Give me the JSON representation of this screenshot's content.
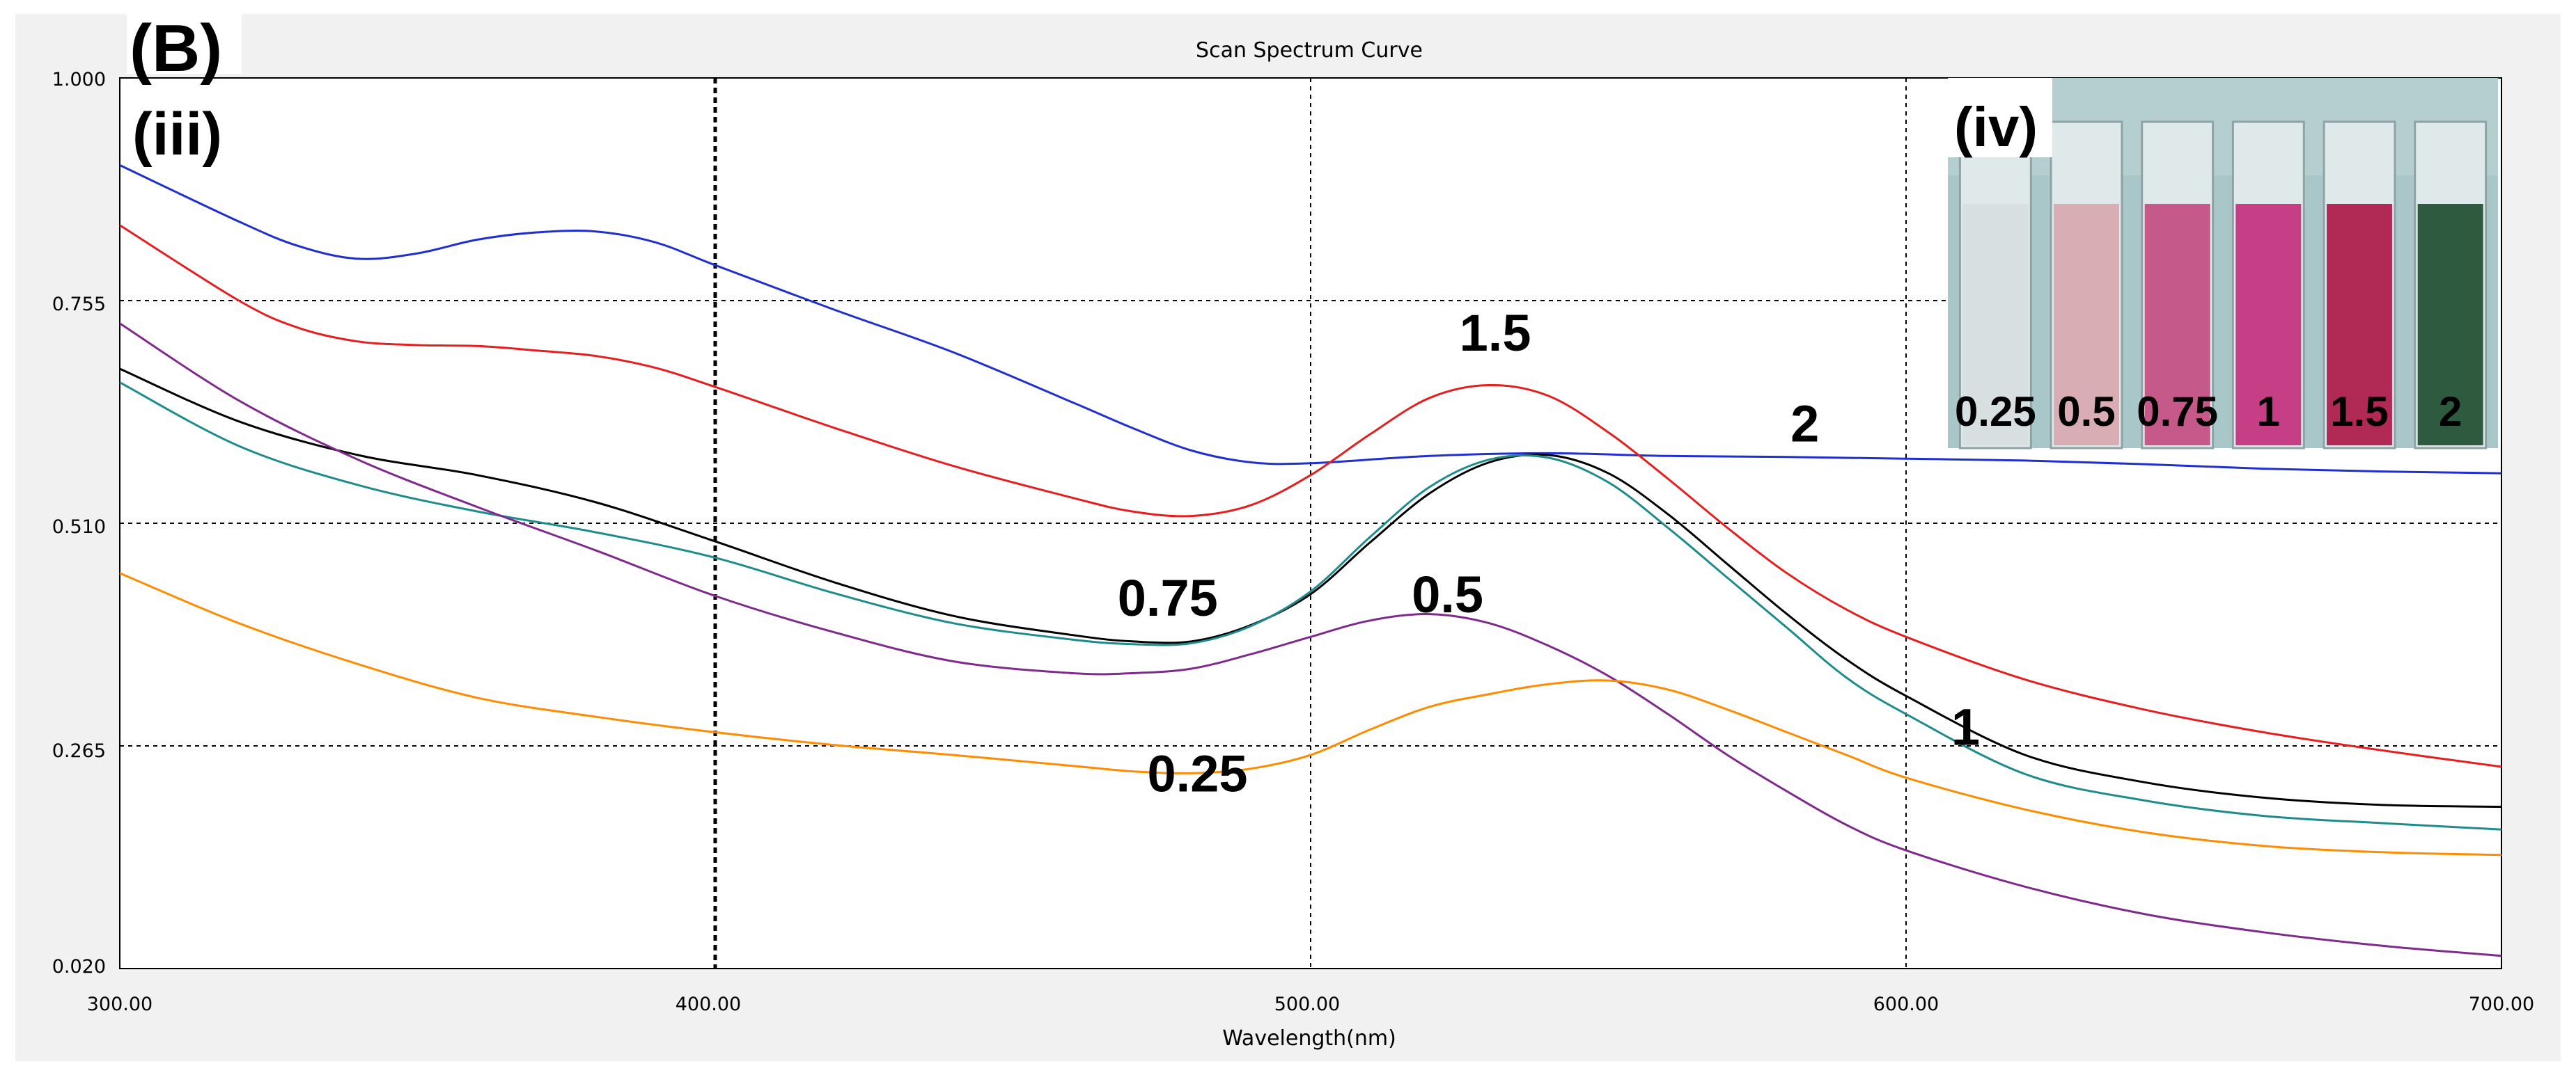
{
  "chart_data": {
    "type": "line",
    "title": "Scan Spectrum Curve",
    "xlabel": "Wavelength(nm)",
    "ylabel": "",
    "xlim": [
      300,
      700
    ],
    "ylim": [
      0.02,
      1.0
    ],
    "x_ticks": [
      "300.00",
      "400.00",
      "500.00",
      "600.00",
      "700.00"
    ],
    "y_ticks": [
      "0.020",
      "0.265",
      "0.510",
      "0.755",
      "1.000"
    ],
    "grid": true,
    "series": [
      {
        "name": "2",
        "color": "#1f2fd0",
        "points": [
          [
            300,
            0.904
          ],
          [
            320,
            0.842
          ],
          [
            330,
            0.815
          ],
          [
            340,
            0.801
          ],
          [
            350,
            0.807
          ],
          [
            360,
            0.822
          ],
          [
            370,
            0.83
          ],
          [
            380,
            0.831
          ],
          [
            390,
            0.819
          ],
          [
            400,
            0.794
          ],
          [
            420,
            0.745
          ],
          [
            440,
            0.698
          ],
          [
            460,
            0.643
          ],
          [
            470,
            0.615
          ],
          [
            480,
            0.59
          ],
          [
            490,
            0.577
          ],
          [
            500,
            0.576
          ],
          [
            520,
            0.584
          ],
          [
            540,
            0.587
          ],
          [
            560,
            0.584
          ],
          [
            580,
            0.583
          ],
          [
            600,
            0.581
          ],
          [
            620,
            0.579
          ],
          [
            640,
            0.575
          ],
          [
            660,
            0.57
          ],
          [
            680,
            0.567
          ],
          [
            700,
            0.565
          ]
        ]
      },
      {
        "name": "1.5",
        "color": "#e61e1e",
        "points": [
          [
            300,
            0.838
          ],
          [
            320,
            0.755
          ],
          [
            330,
            0.725
          ],
          [
            340,
            0.71
          ],
          [
            350,
            0.706
          ],
          [
            360,
            0.705
          ],
          [
            370,
            0.7
          ],
          [
            380,
            0.694
          ],
          [
            390,
            0.681
          ],
          [
            400,
            0.66
          ],
          [
            420,
            0.615
          ],
          [
            440,
            0.573
          ],
          [
            460,
            0.538
          ],
          [
            470,
            0.523
          ],
          [
            480,
            0.518
          ],
          [
            490,
            0.53
          ],
          [
            500,
            0.563
          ],
          [
            510,
            0.608
          ],
          [
            520,
            0.648
          ],
          [
            530,
            0.662
          ],
          [
            540,
            0.65
          ],
          [
            550,
            0.61
          ],
          [
            560,
            0.559
          ],
          [
            570,
            0.505
          ],
          [
            580,
            0.455
          ],
          [
            590,
            0.415
          ],
          [
            600,
            0.385
          ],
          [
            620,
            0.338
          ],
          [
            640,
            0.305
          ],
          [
            660,
            0.28
          ],
          [
            680,
            0.26
          ],
          [
            700,
            0.242
          ]
        ]
      },
      {
        "name": "1",
        "color": "#000000",
        "points": [
          [
            300,
            0.68
          ],
          [
            320,
            0.622
          ],
          [
            340,
            0.585
          ],
          [
            360,
            0.563
          ],
          [
            380,
            0.533
          ],
          [
            400,
            0.49
          ],
          [
            420,
            0.445
          ],
          [
            440,
            0.408
          ],
          [
            460,
            0.387
          ],
          [
            470,
            0.38
          ],
          [
            480,
            0.38
          ],
          [
            490,
            0.398
          ],
          [
            500,
            0.432
          ],
          [
            510,
            0.489
          ],
          [
            520,
            0.543
          ],
          [
            530,
            0.577
          ],
          [
            540,
            0.585
          ],
          [
            550,
            0.565
          ],
          [
            560,
            0.52
          ],
          [
            570,
            0.465
          ],
          [
            580,
            0.41
          ],
          [
            590,
            0.36
          ],
          [
            600,
            0.32
          ],
          [
            620,
            0.255
          ],
          [
            640,
            0.225
          ],
          [
            660,
            0.208
          ],
          [
            680,
            0.2
          ],
          [
            700,
            0.198
          ]
        ]
      },
      {
        "name": "0.75",
        "color": "#1e8c8c",
        "points": [
          [
            300,
            0.665
          ],
          [
            320,
            0.595
          ],
          [
            340,
            0.552
          ],
          [
            360,
            0.523
          ],
          [
            380,
            0.5
          ],
          [
            400,
            0.472
          ],
          [
            420,
            0.433
          ],
          [
            440,
            0.4
          ],
          [
            460,
            0.382
          ],
          [
            470,
            0.377
          ],
          [
            480,
            0.378
          ],
          [
            490,
            0.397
          ],
          [
            500,
            0.435
          ],
          [
            510,
            0.495
          ],
          [
            520,
            0.55
          ],
          [
            530,
            0.58
          ],
          [
            540,
            0.582
          ],
          [
            550,
            0.555
          ],
          [
            560,
            0.505
          ],
          [
            570,
            0.45
          ],
          [
            580,
            0.395
          ],
          [
            590,
            0.34
          ],
          [
            600,
            0.3
          ],
          [
            620,
            0.234
          ],
          [
            640,
            0.205
          ],
          [
            660,
            0.188
          ],
          [
            680,
            0.18
          ],
          [
            700,
            0.173
          ]
        ]
      },
      {
        "name": "0.5",
        "color": "#7f2a8c",
        "points": [
          [
            300,
            0.73
          ],
          [
            320,
            0.645
          ],
          [
            340,
            0.58
          ],
          [
            360,
            0.528
          ],
          [
            380,
            0.48
          ],
          [
            400,
            0.43
          ],
          [
            420,
            0.39
          ],
          [
            440,
            0.358
          ],
          [
            460,
            0.345
          ],
          [
            470,
            0.345
          ],
          [
            480,
            0.35
          ],
          [
            490,
            0.366
          ],
          [
            500,
            0.385
          ],
          [
            510,
            0.403
          ],
          [
            520,
            0.41
          ],
          [
            530,
            0.4
          ],
          [
            540,
            0.375
          ],
          [
            550,
            0.342
          ],
          [
            560,
            0.3
          ],
          [
            570,
            0.255
          ],
          [
            580,
            0.215
          ],
          [
            590,
            0.178
          ],
          [
            600,
            0.15
          ],
          [
            620,
            0.11
          ],
          [
            640,
            0.08
          ],
          [
            660,
            0.06
          ],
          [
            680,
            0.045
          ],
          [
            700,
            0.034
          ]
        ]
      },
      {
        "name": "0.25",
        "color": "#ff8c00",
        "points": [
          [
            300,
            0.455
          ],
          [
            320,
            0.4
          ],
          [
            340,
            0.355
          ],
          [
            360,
            0.318
          ],
          [
            380,
            0.297
          ],
          [
            400,
            0.28
          ],
          [
            420,
            0.266
          ],
          [
            440,
            0.255
          ],
          [
            460,
            0.243
          ],
          [
            470,
            0.237
          ],
          [
            480,
            0.235
          ],
          [
            490,
            0.24
          ],
          [
            500,
            0.255
          ],
          [
            510,
            0.283
          ],
          [
            520,
            0.308
          ],
          [
            530,
            0.322
          ],
          [
            540,
            0.333
          ],
          [
            550,
            0.337
          ],
          [
            560,
            0.327
          ],
          [
            570,
            0.305
          ],
          [
            580,
            0.28
          ],
          [
            590,
            0.255
          ],
          [
            600,
            0.23
          ],
          [
            620,
            0.195
          ],
          [
            640,
            0.17
          ],
          [
            660,
            0.155
          ],
          [
            680,
            0.148
          ],
          [
            700,
            0.145
          ]
        ]
      }
    ],
    "annotations": [
      {
        "text": "1.5",
        "x": 531,
        "y": 0.7
      },
      {
        "text": "2",
        "x": 583,
        "y": 0.6
      },
      {
        "text": "0.75",
        "x": 476,
        "y": 0.408
      },
      {
        "text": "0.5",
        "x": 523,
        "y": 0.412
      },
      {
        "text": "1",
        "x": 610,
        "y": 0.266
      },
      {
        "text": "0.25",
        "x": 481,
        "y": 0.215
      }
    ]
  },
  "panel": {
    "label_b": "(B)",
    "label_iii": "(iii)"
  },
  "inset": {
    "label": "(iv)",
    "background_color": "#a9c6c9",
    "vials": [
      {
        "label": "0.25",
        "color": "#d8dfe0"
      },
      {
        "label": "0.5",
        "color": "#d8aeb4"
      },
      {
        "label": "0.75",
        "color": "#c55a8a"
      },
      {
        "label": "1",
        "color": "#c53e86"
      },
      {
        "label": "1.5",
        "color": "#b02a55"
      },
      {
        "label": "2",
        "color": "#2e5a40"
      }
    ]
  }
}
